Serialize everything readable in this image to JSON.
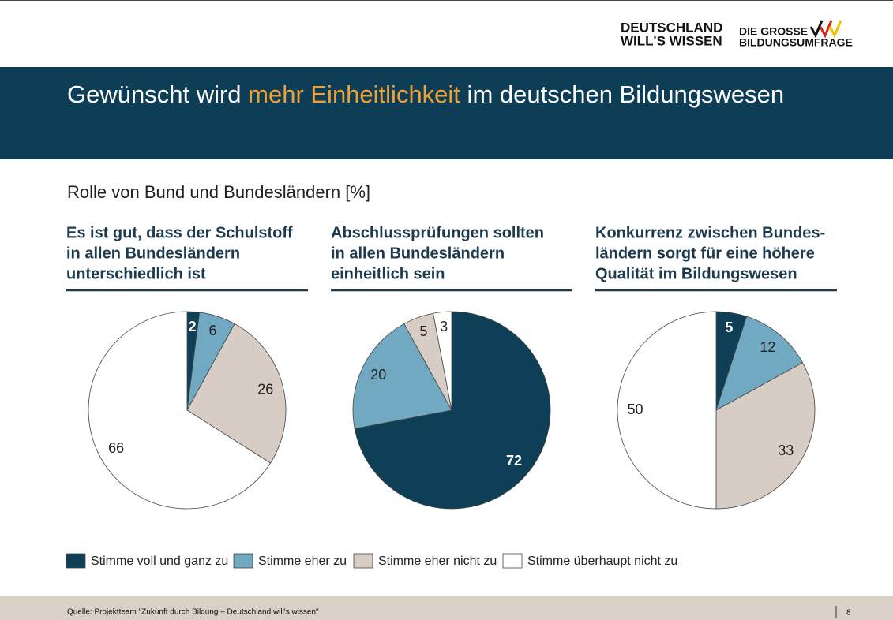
{
  "logo": {
    "left": [
      "DEUTSCHLAND",
      "WILL'S WISSEN"
    ],
    "right": [
      "DIE GROSSE",
      "BILDUNGSUMFRAGE"
    ]
  },
  "title": [
    "Gewünscht wird ",
    "mehr Einheitlichkeit",
    " im deutschen Bildungswesen"
  ],
  "subtitle": "Rolle von Bund und Bundesländern [%]",
  "legend": {
    "labels": [
      "Stimme voll und ganz zu",
      "Stimme eher zu",
      "Stimme eher nicht zu",
      "Stimme überhaupt nicht zu"
    ],
    "colors": [
      "#0f3f57",
      "#72a9c2",
      "#d7cdc4",
      "#ffffff"
    ]
  },
  "chart_data": [
    {
      "type": "pie",
      "title": [
        "Es ist gut, dass der Schulstoff",
        "in allen Bundesländern",
        "unterschiedlich ist"
      ],
      "values": [
        2,
        6,
        26,
        66
      ]
    },
    {
      "type": "pie",
      "title": [
        "Abschlussprüfungen sollten",
        "in allen Bundesländern",
        "einheitlich sein"
      ],
      "values": [
        72,
        20,
        5,
        3
      ]
    },
    {
      "type": "pie",
      "title": [
        "Konkurrenz zwischen Bundes-",
        "ländern sorgt für eine höhere",
        "Qualität im Bildungswesen"
      ],
      "values": [
        5,
        12,
        33,
        50
      ]
    }
  ],
  "source": "Quelle: Projektteam \"Zukunft durch Bildung – Deutschland will's wissen\"",
  "page_number": "8"
}
